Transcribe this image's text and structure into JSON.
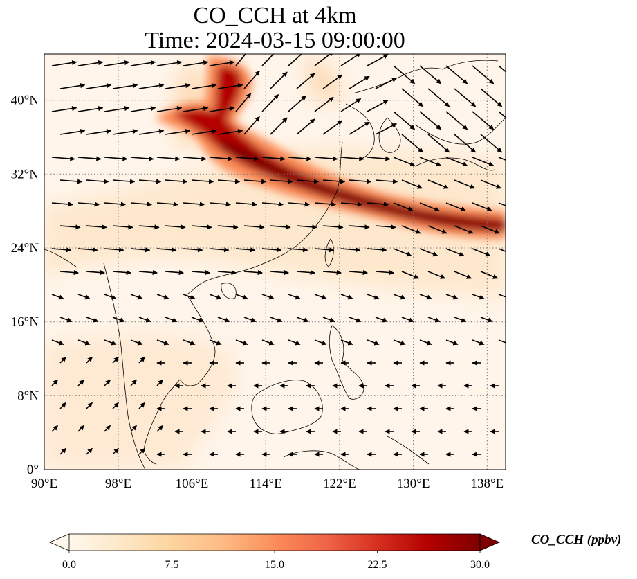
{
  "title_line1": "CO_CCH at 4km",
  "title_line2": "Time: 2024-03-15 09:00:00",
  "map": {
    "lon_range": [
      90,
      140
    ],
    "lat_range": [
      0,
      45
    ],
    "lon_ticks": [
      90,
      98,
      106,
      114,
      122,
      130,
      138
    ],
    "lon_tick_labels": [
      "90°E",
      "98°E",
      "106°E",
      "114°E",
      "122°E",
      "130°E",
      "138°E"
    ],
    "lat_ticks": [
      0,
      8,
      16,
      24,
      32,
      40
    ],
    "lat_tick_labels": [
      "0°",
      "8°N",
      "16°N",
      "24°N",
      "32°N",
      "40°N"
    ],
    "gridlines": true,
    "plume_color": "#7f0000",
    "wind_vectors": "black arrows"
  },
  "colorbar": {
    "label": "CO_CCH (ppbv)",
    "range": [
      0,
      30
    ],
    "ticks": [
      0,
      7.5,
      15,
      22.5,
      30
    ],
    "tick_labels": [
      "0.0",
      "7.5",
      "15.0",
      "22.5",
      "30.0"
    ],
    "colormap": "OrRd",
    "colors": [
      "#fff7ec",
      "#fee8c8",
      "#fdd49e",
      "#fdbb84",
      "#fc8d59",
      "#ef6548",
      "#d7301f",
      "#b30000",
      "#7f0000"
    ],
    "extend": "both"
  }
}
